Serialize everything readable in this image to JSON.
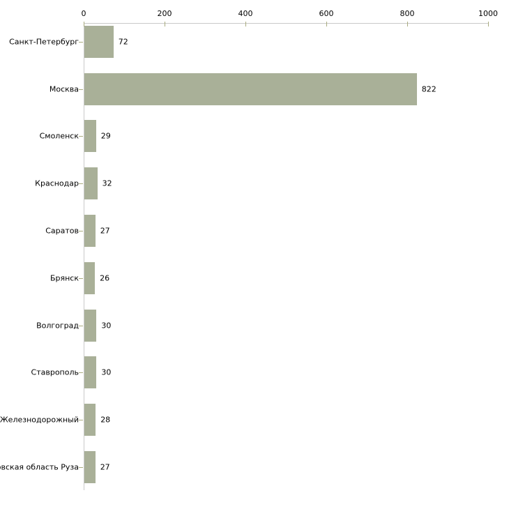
{
  "chart_data": {
    "type": "bar",
    "orientation": "horizontal",
    "title": "",
    "xlabel": "",
    "ylabel": "",
    "categories": [
      "Санкт-Петербург",
      "Москва",
      "Смоленск",
      "Краснодар",
      "Саратов",
      "Брянск",
      "Волгоград",
      "Ставрополь",
      "ъ Железнодорожный",
      "ковская область Руза"
    ],
    "values": [
      72,
      822,
      29,
      32,
      27,
      26,
      30,
      30,
      28,
      27
    ],
    "value_labels": [
      "72",
      "822",
      "29",
      "32",
      "27",
      "26",
      "30",
      "30",
      "28",
      "27"
    ],
    "x_ticks": [
      "0",
      "200",
      "400",
      "600",
      "800",
      "1000"
    ],
    "x_tick_values": [
      0,
      200,
      400,
      600,
      800,
      1000
    ],
    "xlim": [
      0,
      1000
    ],
    "grid": false,
    "legend": null,
    "colors": {
      "bar_fill": "#a9b098",
      "axis_line": "#c9c9c9",
      "tick_mark": "#a9ab7f",
      "text": "#000000",
      "background": "#ffffff"
    }
  }
}
